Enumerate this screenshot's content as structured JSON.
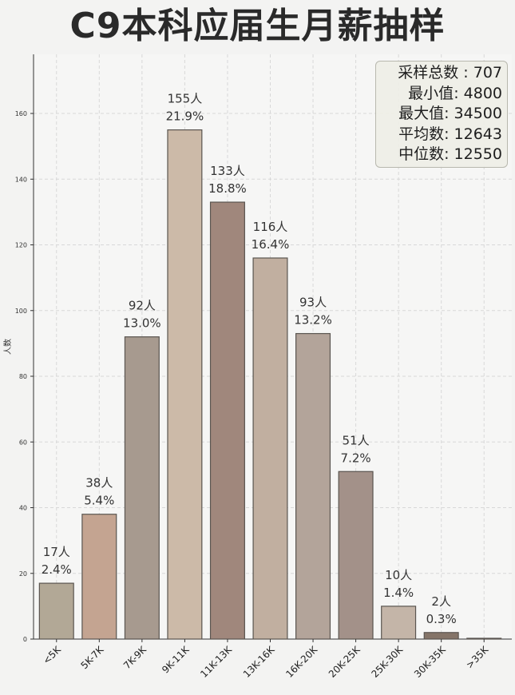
{
  "title": "C9本科应届生月薪抽样",
  "stats": [
    {
      "label": "采样总数",
      "value": "707"
    },
    {
      "label": "最小值",
      "value": "4800"
    },
    {
      "label": "最大值",
      "value": "34500"
    },
    {
      "label": "平均数",
      "value": "12643"
    },
    {
      "label": "中位数",
      "value": "12550"
    }
  ],
  "colors": {
    "bars": [
      "#b2a896",
      "#c4a491",
      "#a79a8f",
      "#ccbaa8",
      "#a0877c",
      "#c1afa0",
      "#b3a49a",
      "#a39189",
      "#c4b5a8",
      "#857468",
      "#6b6660"
    ],
    "bar_edge": "#5a5550",
    "grid": "#d8d8d8",
    "background": "#f3f3f2"
  },
  "chart_data": {
    "type": "bar",
    "title": "C9本科应届生月薪抽样",
    "xlabel": "",
    "ylabel": "人数",
    "categories": [
      "<5K",
      "5K-7K",
      "7K-9K",
      "9K-11K",
      "11K-13K",
      "13K-16K",
      "16K-20K",
      "20K-25K",
      "25K-30K",
      "30K-35K",
      ">35K"
    ],
    "values": [
      17,
      38,
      92,
      155,
      133,
      116,
      93,
      51,
      10,
      2,
      0
    ],
    "count_labels": [
      "17人",
      "38人",
      "92人",
      "155人",
      "133人",
      "116人",
      "93人",
      "51人",
      "10人",
      "2人",
      ""
    ],
    "percent_labels": [
      "2.4%",
      "5.4%",
      "13.0%",
      "21.9%",
      "18.8%",
      "16.4%",
      "13.2%",
      "7.2%",
      "1.4%",
      "0.3%",
      ""
    ],
    "ylim": [
      0,
      178
    ],
    "yticks": [
      0,
      20,
      40,
      60,
      80,
      100,
      120,
      140,
      160
    ],
    "grid": true,
    "legend": "top-right stats box"
  }
}
